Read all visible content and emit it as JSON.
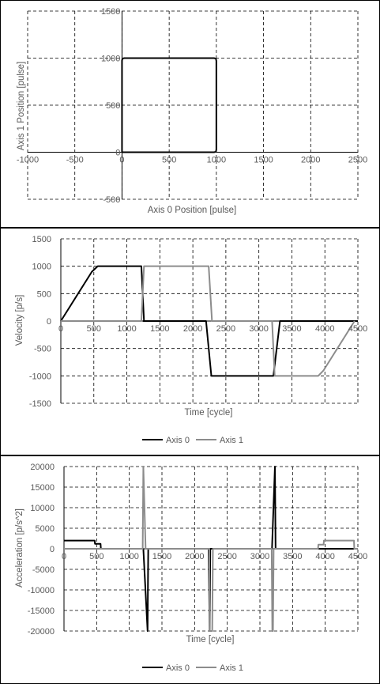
{
  "colors": {
    "axis0": "#000000",
    "axis1": "#8c8c8c",
    "grid": "#000000",
    "frame": "#000000",
    "text": "#595959"
  },
  "chart_data": [
    {
      "type": "line",
      "xlabel": "Axis 0 Position [pulse]",
      "ylabel": "Axis 1 Position [pulse]",
      "xlim": [
        -1000,
        2500
      ],
      "ylim": [
        -500,
        1500
      ],
      "xticks": [
        -1000,
        -500,
        0,
        500,
        1000,
        1500,
        2000,
        2500
      ],
      "yticks": [
        -500,
        0,
        500,
        1000,
        1500
      ],
      "x_tick_labels": [
        "-1000",
        "-500",
        "0",
        "500",
        "1000",
        "1500",
        "2000",
        "2500"
      ],
      "y_tick_labels": [
        "-500",
        "0",
        "500",
        "1000",
        "1500"
      ],
      "grid": true,
      "series": [
        {
          "x": [
            0,
            5,
            25,
            975,
            995,
            1000,
            1000,
            995,
            975,
            25,
            5,
            0,
            0
          ],
          "y": [
            0,
            0,
            0,
            0,
            5,
            30,
            970,
            995,
            1000,
            1000,
            995,
            975,
            0
          ]
        }
      ]
    },
    {
      "type": "line",
      "xlabel": "Time [cycle]",
      "ylabel": "Velocity [p/s]",
      "xlim": [
        0,
        4500
      ],
      "ylim": [
        -1500,
        1500
      ],
      "xticks": [
        0,
        500,
        1000,
        1500,
        2000,
        2500,
        3000,
        3500,
        4000,
        4500
      ],
      "yticks": [
        -1500,
        -1000,
        -500,
        0,
        500,
        1000,
        1500
      ],
      "x_tick_labels": [
        "0",
        "500",
        "1000",
        "1500",
        "2000",
        "2500",
        "3000",
        "3500",
        "4000",
        "4500"
      ],
      "y_tick_labels": [
        "-1500",
        "-1000",
        "-500",
        "0",
        "500",
        "1000",
        "1500"
      ],
      "grid": true,
      "legend_position": "bottom",
      "series": [
        {
          "name": "Axis 0",
          "x": [
            0,
            470,
            560,
            1220,
            1260,
            1250,
            2200,
            2280,
            3180,
            3220,
            3320,
            4500
          ],
          "y": [
            0,
            900,
            1000,
            1000,
            0,
            0,
            0,
            -1000,
            -1000,
            -1000,
            0,
            0
          ]
        },
        {
          "name": "Axis 1",
          "x": [
            0,
            1220,
            1260,
            2240,
            2290,
            3200,
            3240,
            3250,
            3900,
            3980,
            4450
          ],
          "y": [
            0,
            0,
            1000,
            1000,
            0,
            0,
            -1000,
            -1000,
            -1000,
            -900,
            0
          ]
        }
      ]
    },
    {
      "type": "line",
      "xlabel": "Time [cycle]",
      "ylabel": "Acceleration [p/s^2]",
      "xlim": [
        0,
        4500
      ],
      "ylim": [
        -20000,
        20000
      ],
      "xticks": [
        0,
        500,
        1000,
        1500,
        2000,
        2500,
        3000,
        3500,
        4000,
        4500
      ],
      "yticks": [
        -20000,
        -15000,
        -10000,
        -5000,
        0,
        5000,
        10000,
        15000,
        20000
      ],
      "x_tick_labels": [
        "0",
        "500",
        "1000",
        "1500",
        "2000",
        "2500",
        "3000",
        "3500",
        "4000",
        "4500"
      ],
      "y_tick_labels": [
        "-20000",
        "-15000",
        "-10000",
        "-5000",
        "0",
        "5000",
        "10000",
        "15000",
        "20000"
      ],
      "grid": true,
      "legend_position": "bottom",
      "series": [
        {
          "name": "Axis 0",
          "x": [
            0,
            470,
            475,
            560,
            565,
            1210,
            1215,
            1280,
            1290,
            2210,
            2215,
            2230,
            2240,
            3180,
            3185,
            3230,
            3240,
            4500
          ],
          "y": [
            2000,
            2000,
            1200,
            1200,
            0,
            0,
            0,
            -20000,
            0,
            0,
            0,
            -20000,
            0,
            0,
            0,
            20000,
            0,
            0
          ]
        },
        {
          "name": "Axis 1",
          "x": [
            0,
            1200,
            1205,
            1215,
            1250,
            1260,
            2225,
            2230,
            2270,
            2280,
            3180,
            3190,
            3200,
            3210,
            3890,
            3895,
            3975,
            3980,
            4440,
            4445,
            4500
          ],
          "y": [
            0,
            0,
            0,
            20000,
            0,
            0,
            0,
            -20000,
            -20000,
            0,
            0,
            -20000,
            -20000,
            0,
            0,
            1000,
            1000,
            2000,
            2000,
            0,
            0
          ]
        }
      ]
    }
  ]
}
